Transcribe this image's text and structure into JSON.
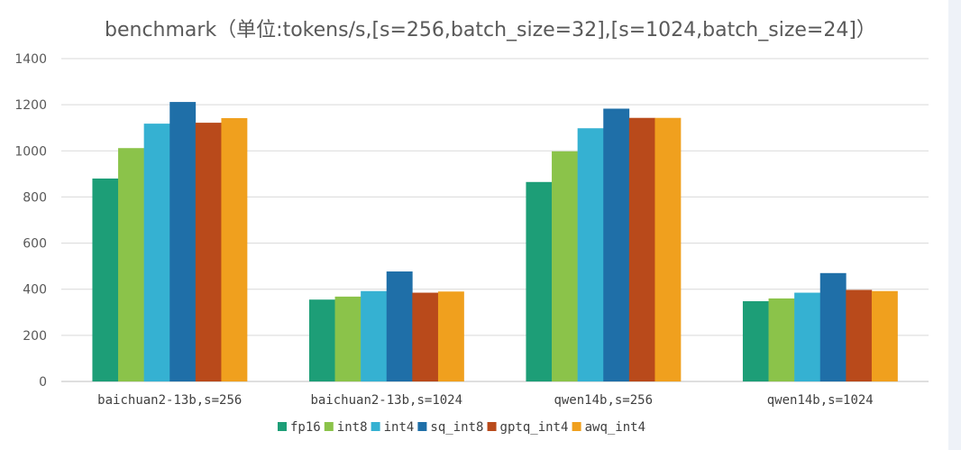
{
  "chart_data": {
    "type": "bar",
    "title": "benchmark（单位:tokens/s,[s=256,batch_size=32],[s=1024,batch_size=24]）",
    "xlabel": "",
    "ylabel": "",
    "ylim": [
      0,
      1400
    ],
    "yticks": [
      0,
      200,
      400,
      600,
      800,
      1000,
      1200,
      1400
    ],
    "grid": true,
    "legend_position": "bottom",
    "categories": [
      "baichuan2-13b,s=256",
      "baichuan2-13b,s=1024",
      "qwen14b,s=256",
      "qwen14b,s=1024"
    ],
    "series": [
      {
        "name": "fp16",
        "color": "#1d9e77",
        "values": [
          880,
          355,
          865,
          348
        ]
      },
      {
        "name": "int8",
        "color": "#8bc34a",
        "values": [
          1012,
          368,
          998,
          360
        ]
      },
      {
        "name": "int4",
        "color": "#35b1d2",
        "values": [
          1118,
          392,
          1098,
          385
        ]
      },
      {
        "name": "sq_int8",
        "color": "#1f6fa8",
        "values": [
          1212,
          477,
          1183,
          470
        ]
      },
      {
        "name": "gptq_int4",
        "color": "#b94a1b",
        "values": [
          1122,
          385,
          1143,
          397
        ]
      },
      {
        "name": "awq_int4",
        "color": "#f0a01e",
        "values": [
          1142,
          390,
          1143,
          392
        ]
      }
    ]
  }
}
